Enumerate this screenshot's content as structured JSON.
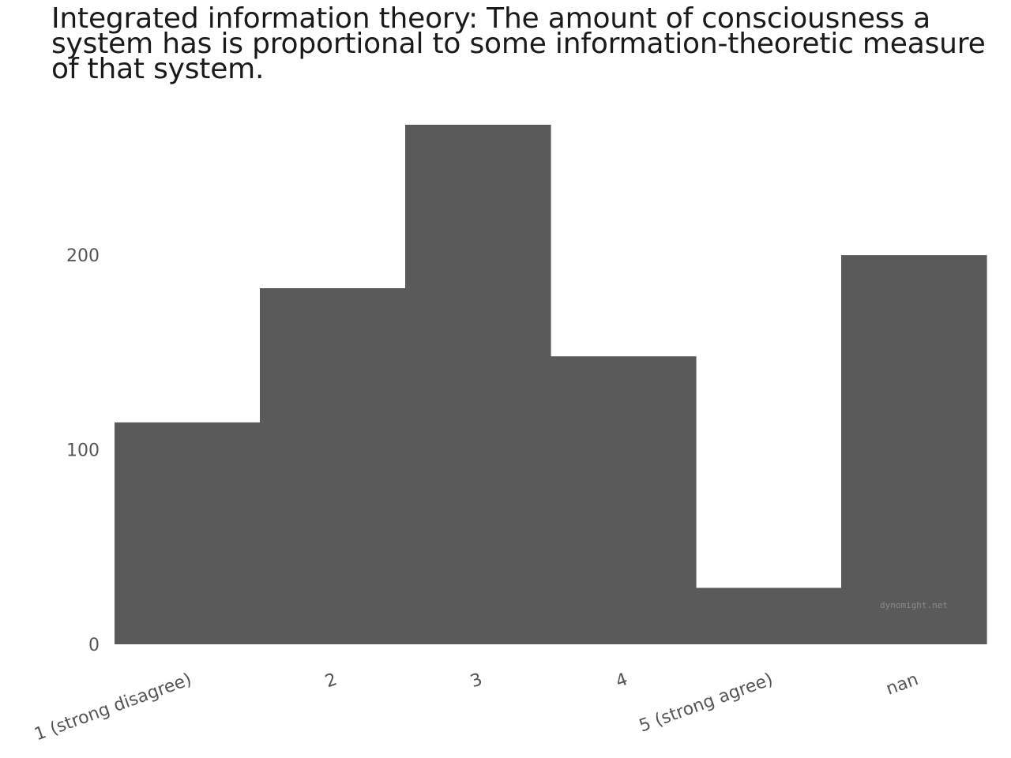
{
  "chart_data": {
    "type": "bar",
    "title": "Integrated information theory: The amount of consciousness a system has is proportional to some information-theoretic measure of that system.",
    "xlabel": "",
    "ylabel": "",
    "categories": [
      "1 (strong disagree)",
      "2",
      "3",
      "4",
      "5 (strong agree)",
      "nan"
    ],
    "values": [
      114,
      183,
      267,
      148,
      29,
      200
    ],
    "yticks": [
      0,
      100,
      200
    ],
    "ylim": [
      0,
      267
    ],
    "grid": false,
    "bar_color": "#5a5a5a",
    "tick_color": "#555555",
    "watermark": "dynomight.net"
  }
}
